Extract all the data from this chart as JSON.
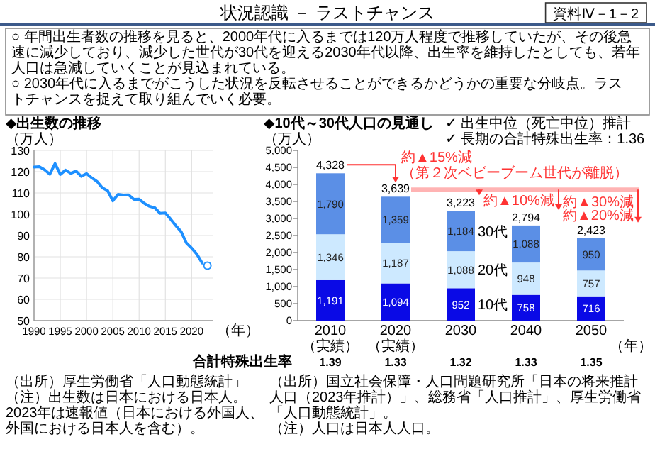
{
  "chart_data": [
    {
      "type": "other",
      "title": "状況認識 － ラストチャンス",
      "annotations": [
        "資料Ⅳ－1－2",
        "○ 年間出生者数の推移を見ると、2000年代に入るまでは120万人程度で推移していたが、その後急速に減少しており、減少した世代が30代を迎える2030年代以降、出生率を維持したとしても、若年人口は急減していくことが見込まれている。",
        "○ 2030年代に入るまでがこうした状況を反転させることができるかどうかの重要な分岐点。ラストチャンスを捉えて取り組んでいく必要。"
      ]
    },
    {
      "type": "line",
      "title": "◆出生数の推移",
      "ylabel": "（万人）",
      "xlabel": "（年）",
      "xlim": [
        1990,
        2024
      ],
      "xticks": [
        1990,
        1995,
        2000,
        2005,
        2010,
        2015,
        2020
      ],
      "ylim": [
        50,
        130
      ],
      "yticks": [
        50,
        60,
        70,
        80,
        90,
        100,
        110,
        120,
        130
      ],
      "grid": true,
      "series": [
        {
          "color": "#1e90ff",
          "marker": "none",
          "x": [
            1990,
            1991,
            1992,
            1993,
            1994,
            1995,
            1996,
            1997,
            1998,
            1999,
            2000,
            2001,
            2002,
            2003,
            2004,
            2005,
            2006,
            2007,
            2008,
            2009,
            2010,
            2011,
            2012,
            2013,
            2014,
            2015,
            2016,
            2017,
            2018,
            2019,
            2020,
            2021,
            2022
          ],
          "values": [
            122.2,
            122.3,
            120.9,
            118.8,
            123.8,
            118.7,
            120.7,
            119.2,
            120.3,
            117.8,
            119.1,
            117.1,
            115.4,
            112.4,
            111.1,
            106.3,
            109.3,
            109.0,
            109.1,
            107.0,
            107.1,
            105.1,
            103.7,
            103.0,
            100.4,
            100.6,
            97.7,
            94.6,
            91.8,
            86.5,
            84.1,
            81.2,
            77.1
          ]
        },
        {
          "type": "scatter",
          "color": "#1e90ff",
          "marker": "circle",
          "x": [
            2023
          ],
          "values": [
            75.8
          ]
        }
      ],
      "annotations": [
        "（出所）厚生労働省「人口動態統計」",
        "（注）出生数は日本における日本人。2023年は速報値（日本における外国人、外国における日本人を含む）。"
      ]
    },
    {
      "type": "bar",
      "stacked": true,
      "title": "◆10代～30代人口の見通し",
      "ylabel": "（万人）",
      "xlabel": "（年）",
      "categories": [
        "2010（実績）",
        "2020（実績）",
        "2030",
        "2040",
        "2050"
      ],
      "ylim": [
        0,
        5000
      ],
      "yticks": [
        0,
        500,
        {
          "value": 1000,
          "label": "1,000"
        },
        {
          "value": 1500,
          "label": "1,500"
        },
        {
          "value": 2000,
          "label": "2,000"
        },
        {
          "value": 2500,
          "label": "2,500"
        },
        {
          "value": 3000,
          "label": "3,000"
        },
        {
          "value": 3500,
          "label": "3,500"
        },
        {
          "value": 4000,
          "label": "4,000"
        },
        {
          "value": 4500,
          "label": "4,500"
        },
        {
          "value": 5000,
          "label": "5,000"
        }
      ],
      "series": [
        {
          "name": "10代",
          "color": "#0a0ae6",
          "values": [
            1191,
            1094,
            952,
            758,
            716
          ],
          "value_labels": [
            "1,191",
            "1,094",
            "952",
            "758",
            "716"
          ]
        },
        {
          "name": "20代",
          "color": "#cde9ff",
          "values": [
            1346,
            1187,
            1088,
            948,
            757
          ],
          "value_labels": [
            "1,346",
            "1,187",
            "1,088",
            "948",
            "757"
          ]
        },
        {
          "name": "30代",
          "color": "#5b8fe6",
          "values": [
            1790,
            1359,
            1184,
            1088,
            950
          ],
          "value_labels": [
            "1,790",
            "1,359",
            "1,184",
            "1,088",
            "950"
          ]
        }
      ],
      "totals": [
        "4,328",
        "3,639",
        "3,223",
        "2,794",
        "2,423"
      ],
      "annotations": [
        "約▲15%減",
        "（第２次ベビーブーム世代が離脱）",
        {
          "text": "約▲10%減",
          "x": "2030",
          "y": 3223
        },
        {
          "text": "約▲20%減",
          "x": "2040",
          "y": 2794
        },
        {
          "text": "約▲30%減",
          "x": "2050",
          "y": 2423
        },
        "✓ 出生中位（死亡中位）推計",
        "✓ 長期の合計特殊出生率：1.36",
        "合計特殊出生率",
        "1.39",
        "1.33",
        "1.32",
        "1.33",
        "1.35",
        "（出所）国立社会保障・人口問題研究所「日本の将来推計人口（2023年推計）」、総務省「人口推計」、厚生労働省「人口動態統計」。",
        "（注）人口は日本人人口。"
      ]
    }
  ]
}
